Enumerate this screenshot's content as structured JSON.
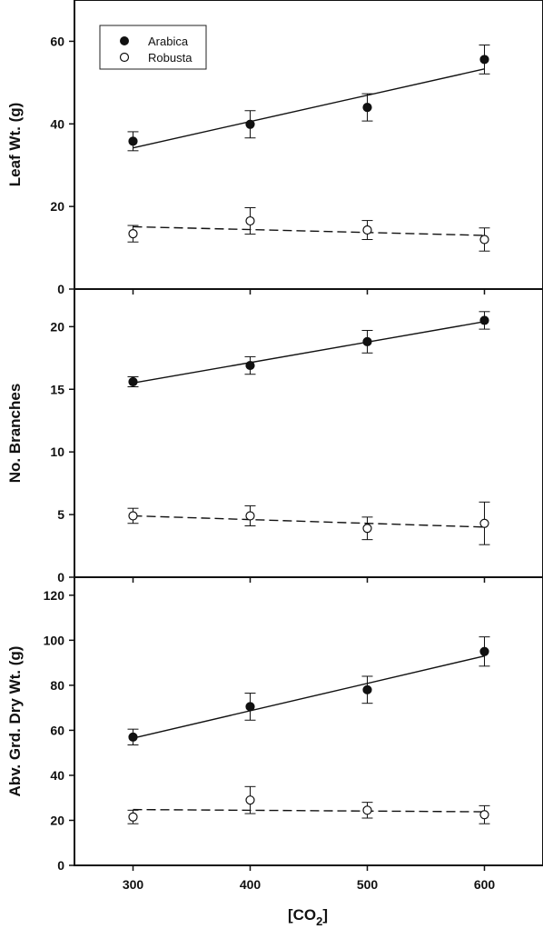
{
  "xlabel": "[CO",
  "xlabel_sub": "2",
  "xlabel_close": "]",
  "legend": [
    {
      "label": "Arabica",
      "marker": "filled-circle"
    },
    {
      "label": "Robusta",
      "marker": "open-circle"
    }
  ],
  "chart_data": [
    {
      "type": "scatter",
      "title": "",
      "ylabel": "Leaf Wt. (g)",
      "xlabel": "",
      "xlim": [
        250,
        650
      ],
      "ylim": [
        0,
        70
      ],
      "xticks": [
        300,
        400,
        500,
        600
      ],
      "yticks": [
        0,
        20,
        40,
        60
      ],
      "show_x_tick_labels": false,
      "series": [
        {
          "name": "Arabica",
          "marker": "filled",
          "x": [
            300,
            400,
            500,
            600
          ],
          "y": [
            35.8,
            39.9,
            44.0,
            55.6
          ],
          "err": [
            2.3,
            3.3,
            3.3,
            3.5
          ],
          "fit": {
            "x": [
              300,
              600
            ],
            "y": [
              34.2,
              53.3
            ],
            "style": "solid"
          }
        },
        {
          "name": "Robusta",
          "marker": "open",
          "x": [
            300,
            400,
            500,
            600
          ],
          "y": [
            13.4,
            16.5,
            14.3,
            12.0
          ],
          "err": [
            2.0,
            3.2,
            2.3,
            2.8
          ],
          "fit": {
            "x": [
              300,
              600
            ],
            "y": [
              15.1,
              13.0
            ],
            "style": "dashed"
          }
        }
      ]
    },
    {
      "type": "scatter",
      "title": "",
      "ylabel": "No. Branches",
      "xlabel": "",
      "xlim": [
        250,
        650
      ],
      "ylim": [
        0,
        23
      ],
      "xticks": [
        300,
        400,
        500,
        600
      ],
      "yticks": [
        0,
        5,
        10,
        15,
        20
      ],
      "show_x_tick_labels": false,
      "series": [
        {
          "name": "Arabica",
          "marker": "filled",
          "x": [
            300,
            400,
            500,
            600
          ],
          "y": [
            15.6,
            16.9,
            18.8,
            20.5
          ],
          "err": [
            0.4,
            0.7,
            0.9,
            0.7
          ],
          "fit": {
            "x": [
              300,
              600
            ],
            "y": [
              15.5,
              20.4
            ],
            "style": "solid"
          }
        },
        {
          "name": "Robusta",
          "marker": "open",
          "x": [
            300,
            400,
            500,
            600
          ],
          "y": [
            4.9,
            4.9,
            3.9,
            4.3
          ],
          "err": [
            0.6,
            0.8,
            0.9,
            1.7
          ],
          "fit": {
            "x": [
              300,
              600
            ],
            "y": [
              4.9,
              4.0
            ],
            "style": "dashed"
          }
        }
      ]
    },
    {
      "type": "scatter",
      "title": "",
      "ylabel": "Abv. Grd. Dry Wt. (g)",
      "xlabel": "",
      "xlim": [
        250,
        650
      ],
      "ylim": [
        0,
        128
      ],
      "xticks": [
        300,
        400,
        500,
        600
      ],
      "yticks": [
        0,
        20,
        40,
        60,
        80,
        100,
        120
      ],
      "show_x_tick_labels": true,
      "series": [
        {
          "name": "Arabica",
          "marker": "filled",
          "x": [
            300,
            400,
            500,
            600
          ],
          "y": [
            57.0,
            70.5,
            78.0,
            95.0
          ],
          "err": [
            3.5,
            6.0,
            6.0,
            6.5
          ],
          "fit": {
            "x": [
              300,
              600
            ],
            "y": [
              56.5,
              93.0
            ],
            "style": "solid"
          }
        },
        {
          "name": "Robusta",
          "marker": "open",
          "x": [
            300,
            400,
            500,
            600
          ],
          "y": [
            21.5,
            29.0,
            24.5,
            22.5
          ],
          "err": [
            3.0,
            6.0,
            3.5,
            4.0
          ],
          "fit": {
            "x": [
              300,
              600
            ],
            "y": [
              24.8,
              23.8
            ],
            "style": "dashed"
          }
        }
      ]
    }
  ]
}
